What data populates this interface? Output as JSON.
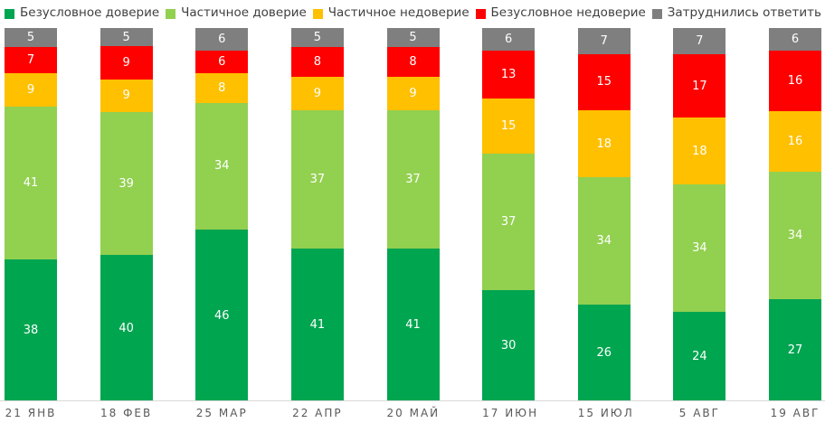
{
  "chart_data": {
    "type": "bar",
    "variant": "stacked-100-percent",
    "orientation": "vertical",
    "title": "",
    "xlabel": "",
    "ylabel": "",
    "grid": false,
    "legend_position": "top",
    "categories": [
      "21 ЯНВ",
      "18 ФЕВ",
      "25 МАР",
      "22 АПР",
      "20 МАЙ",
      "17 ИЮН",
      "15 ИЮЛ",
      "5 АВГ",
      "19 АВГ"
    ],
    "series": [
      {
        "name": "Безусловное доверие",
        "color": "#00A550",
        "values": [
          38,
          40,
          46,
          41,
          41,
          30,
          26,
          24,
          27
        ]
      },
      {
        "name": "Частичное доверие",
        "color": "#92D050",
        "values": [
          41,
          39,
          34,
          37,
          37,
          37,
          34,
          34,
          34
        ]
      },
      {
        "name": "Частичное недоверие",
        "color": "#FFC000",
        "values": [
          9,
          9,
          8,
          9,
          9,
          15,
          18,
          18,
          16
        ]
      },
      {
        "name": "Безусловное недоверие",
        "color": "#FF0000",
        "values": [
          7,
          9,
          6,
          8,
          8,
          13,
          15,
          17,
          16
        ]
      },
      {
        "name": "Затруднились ответить",
        "color": "#7F7F7F",
        "values": [
          5,
          5,
          6,
          5,
          5,
          6,
          7,
          7,
          6
        ]
      }
    ],
    "value_label_color": "#FFFFFF",
    "axis_line_color": "#D9D9D9",
    "category_label_color": "#595959"
  }
}
